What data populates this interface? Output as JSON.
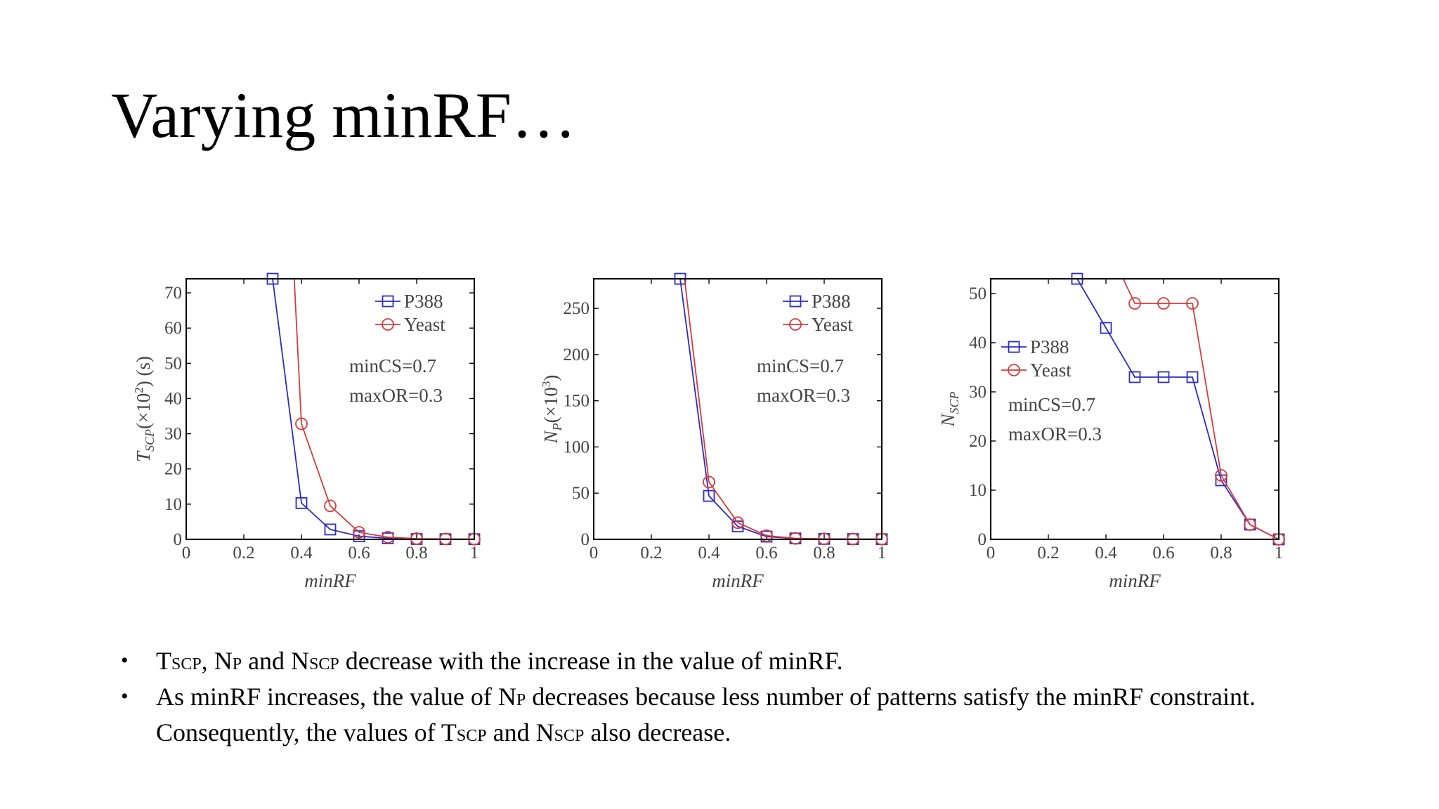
{
  "slide": {
    "title": "Varying minRF…"
  },
  "bullets": [
    {
      "parts": [
        {
          "t": "T"
        },
        {
          "t": "SCP",
          "small": true
        },
        {
          "t": ", N"
        },
        {
          "t": "P",
          "small": true
        },
        {
          "t": " and N"
        },
        {
          "t": "SCP",
          "small": true
        },
        {
          "t": " decrease with the increase in the value of minRF."
        }
      ]
    },
    {
      "parts": [
        {
          "t": "As minRF increases, the value of N"
        },
        {
          "t": "P",
          "small": true
        },
        {
          "t": " decreases because less number of patterns satisfy the minRF constraint."
        },
        {
          "br": true
        },
        {
          "t": "Consequently, the values of T"
        },
        {
          "t": "SCP",
          "small": true
        },
        {
          "t": " and N"
        },
        {
          "t": "SCP",
          "small": true
        },
        {
          "t": " also decrease."
        }
      ]
    }
  ],
  "chart_data": [
    {
      "type": "line",
      "xlabel": "minRF",
      "ylabel": "T_SCP(×10²) (s)",
      "ylabel_parts": {
        "main": "T",
        "sub": "SCP",
        "rest": "(×10",
        "sup": "2",
        "end": ") (s)"
      },
      "xlim": [
        0,
        1
      ],
      "ylim": [
        0,
        74
      ],
      "xticks": [
        0,
        0.2,
        0.4,
        0.6,
        0.8,
        1
      ],
      "xtick_labels": [
        "0",
        "0.2",
        "0.4",
        "0.6",
        "0.8",
        "1"
      ],
      "yticks": [
        0,
        10,
        20,
        30,
        40,
        50,
        60,
        70
      ],
      "ytick_labels": [
        "0",
        "10",
        "20",
        "30",
        "40",
        "50",
        "60",
        "70"
      ],
      "legend_position": "top-right",
      "annotations": [
        "minCS=0.7",
        "maxOR=0.3"
      ],
      "series": [
        {
          "name": "P388",
          "color": "#2b2bc7",
          "marker": "square",
          "x": [
            0.3,
            0.4,
            0.5,
            0.6,
            0.7,
            0.8,
            0.9,
            1.0
          ],
          "y": [
            74,
            10.3,
            2.8,
            0.9,
            0.3,
            0.1,
            0.05,
            0.05
          ]
        },
        {
          "name": "Yeast",
          "color": "#d83a3a",
          "marker": "circle",
          "x": [
            0.375,
            0.4,
            0.5,
            0.6,
            0.7,
            0.8,
            0.9,
            1.0
          ],
          "y": [
            74,
            32.8,
            9.5,
            2.0,
            0.6,
            0.2,
            0.1,
            0.05
          ]
        }
      ]
    },
    {
      "type": "line",
      "xlabel": "minRF",
      "ylabel": "N_P(×10³)",
      "ylabel_parts": {
        "main": "N",
        "sub": "P",
        "rest": "(×10",
        "sup": "3",
        "end": ")"
      },
      "xlim": [
        0,
        1
      ],
      "ylim": [
        0,
        282
      ],
      "xticks": [
        0,
        0.2,
        0.4,
        0.6,
        0.8,
        1
      ],
      "xtick_labels": [
        "0",
        "0.2",
        "0.4",
        "0.6",
        "0.8",
        "1"
      ],
      "yticks": [
        0,
        50,
        100,
        150,
        200,
        250
      ],
      "ytick_labels": [
        "0",
        "50",
        "100",
        "150",
        "200",
        "250"
      ],
      "legend_position": "top-right",
      "annotations": [
        "minCS=0.7",
        "maxOR=0.3"
      ],
      "series": [
        {
          "name": "P388",
          "color": "#2b2bc7",
          "marker": "square",
          "x": [
            0.3,
            0.4,
            0.5,
            0.6,
            0.7,
            0.8,
            0.9,
            1.0
          ],
          "y": [
            282,
            47,
            14,
            3,
            1,
            0.5,
            0.3,
            0.2
          ]
        },
        {
          "name": "Yeast",
          "color": "#d83a3a",
          "marker": "circle",
          "x": [
            0.315,
            0.4,
            0.5,
            0.6,
            0.7,
            0.8,
            0.9,
            1.0
          ],
          "y": [
            282,
            62,
            18,
            4,
            1,
            0.5,
            0.3,
            0.2
          ]
        }
      ]
    },
    {
      "type": "line",
      "xlabel": "minRF",
      "ylabel": "N_SCP",
      "ylabel_parts": {
        "main": "N",
        "sub": "SCP",
        "rest": "",
        "sup": "",
        "end": ""
      },
      "xlim": [
        0,
        1
      ],
      "ylim": [
        0,
        53
      ],
      "xticks": [
        0,
        0.2,
        0.4,
        0.6,
        0.8,
        1
      ],
      "xtick_labels": [
        "0",
        "0.2",
        "0.4",
        "0.6",
        "0.8",
        "1"
      ],
      "yticks": [
        0,
        10,
        20,
        30,
        40,
        50
      ],
      "ytick_labels": [
        "0",
        "10",
        "20",
        "30",
        "40",
        "50"
      ],
      "legend_position": "center-left",
      "annotations": [
        "minCS=0.7",
        "maxOR=0.3"
      ],
      "series": [
        {
          "name": "P388",
          "color": "#2b2bc7",
          "marker": "square",
          "x": [
            0.3,
            0.4,
            0.5,
            0.6,
            0.7,
            0.8,
            0.9,
            1.0
          ],
          "y": [
            53,
            43,
            33,
            33,
            33,
            12,
            3,
            0
          ]
        },
        {
          "name": "Yeast",
          "color": "#d83a3a",
          "marker": "circle",
          "x": [
            0.46,
            0.5,
            0.6,
            0.7,
            0.8,
            0.9,
            1.0
          ],
          "y": [
            53,
            48,
            48,
            48,
            13,
            3,
            0
          ]
        }
      ]
    }
  ]
}
